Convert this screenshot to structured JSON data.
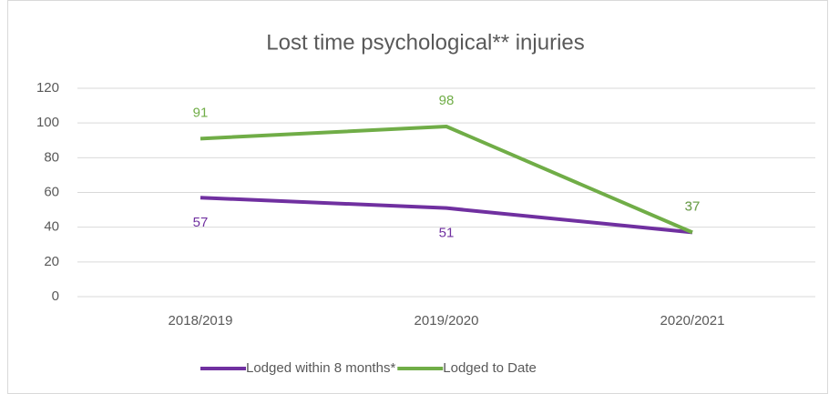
{
  "chart_data": {
    "type": "line",
    "title": "Lost time psychological** injuries",
    "categories": [
      "2018/2019",
      "2019/2020",
      "2020/2021"
    ],
    "series": [
      {
        "name": "Lodged within 8 months*",
        "color": "#7030a0",
        "values": [
          57,
          51,
          37
        ]
      },
      {
        "name": "Lodged to Date",
        "color": "#70ad47",
        "values": [
          91,
          98,
          37
        ]
      }
    ],
    "ylim": [
      0,
      120
    ],
    "yticks": [
      0,
      20,
      40,
      60,
      80,
      100,
      120
    ],
    "grid": true,
    "legend": "bottom"
  }
}
